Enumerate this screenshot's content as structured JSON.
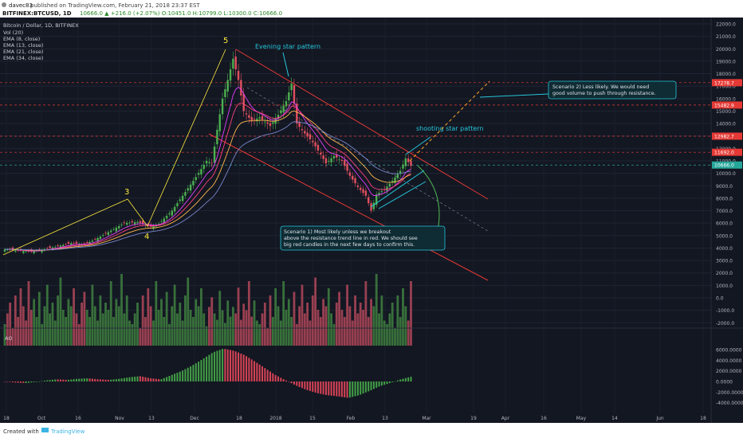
{
  "header": {
    "author": "davec83",
    "published": "published on TradingView.com, February 21, 2018 23:37 EST",
    "ticker": "BITFINEX:BTCUSD, 1D",
    "ohlc": "10666.0 ▲ +216.0 (+2.07%) O:10451.0 H:10799.0 L:10300.0 C:10666.0"
  },
  "footer": {
    "created_with": "Created with",
    "brand": "TradingView"
  },
  "chart_data": {
    "type": "candlestick",
    "title": "Bitcoin / Dollar, 1D, BITFINEX",
    "indicators": [
      "Vol (20)",
      "EMA (8, close)",
      "EMA (13, close)",
      "EMA (21, close)",
      "EMA (34, close)"
    ],
    "colors": {
      "background": "#131722",
      "up": "#4caf50",
      "down": "#e05060",
      "ema8": "#e040fb",
      "ema13": "#ff4081",
      "ema21": "#ffb74d",
      "ema34": "#7986cb",
      "trendline": "#e53935",
      "annotation": "#26c6da",
      "wave": "#ffeb3b"
    },
    "price_axis": [
      22000,
      21000,
      20000,
      19000,
      18000,
      17000,
      16000,
      15000,
      14000,
      13000,
      12000,
      11000,
      10000,
      9000,
      8000,
      7000,
      6000,
      5000,
      4000,
      3000,
      2000,
      1000,
      0,
      -1000,
      -2000
    ],
    "price_labels": [
      {
        "text": "17278.7",
        "color": "#e53935"
      },
      {
        "text": "15482.9",
        "color": "#e53935"
      },
      {
        "text": "12982.7",
        "color": "#e53935"
      },
      {
        "text": "11692.0",
        "color": "#e53935"
      },
      {
        "text": "10666.0",
        "color": "#26a69a"
      }
    ],
    "ao_axis": [
      "6000.0000",
      "4000.0000",
      "2000.0000",
      "0.0000",
      "-2000.0000",
      "-4000.0000"
    ],
    "x_labels": [
      "18",
      "Oct",
      "16",
      "Nov",
      "13",
      "Dec",
      "18",
      "2018",
      "15",
      "Feb",
      "13",
      "Mar",
      "19",
      "Apr",
      "16",
      "May",
      "14",
      "Jun",
      "18"
    ],
    "price_path": [
      [
        0,
        3900
      ],
      [
        10,
        3700
      ],
      [
        18,
        4050
      ],
      [
        25,
        4400
      ],
      [
        30,
        4300
      ],
      [
        35,
        4800
      ],
      [
        40,
        5400
      ],
      [
        45,
        6000
      ],
      [
        50,
        6100
      ],
      [
        55,
        5700
      ],
      [
        58,
        5950
      ],
      [
        63,
        7000
      ],
      [
        68,
        8500
      ],
      [
        72,
        9700
      ],
      [
        76,
        11000
      ],
      [
        78,
        10800
      ],
      [
        80,
        13500
      ],
      [
        82,
        16000
      ],
      [
        84,
        17500
      ],
      [
        86,
        19200
      ],
      [
        88,
        17500
      ],
      [
        90,
        15000
      ],
      [
        93,
        14200
      ],
      [
        96,
        14500
      ],
      [
        100,
        13800
      ],
      [
        103,
        14700
      ],
      [
        106,
        15800
      ],
      [
        108,
        17200
      ],
      [
        110,
        14000
      ],
      [
        113,
        13200
      ],
      [
        116,
        12500
      ],
      [
        119,
        11500
      ],
      [
        121,
        10800
      ],
      [
        124,
        11400
      ],
      [
        127,
        11000
      ],
      [
        130,
        9800
      ],
      [
        133,
        8900
      ],
      [
        136,
        8200
      ],
      [
        138,
        7000
      ],
      [
        140,
        8300
      ],
      [
        143,
        8700
      ],
      [
        146,
        9400
      ],
      [
        149,
        10200
      ],
      [
        151,
        11200
      ],
      [
        153,
        10600
      ]
    ],
    "ema_spreads": [
      0,
      -300,
      -650,
      -1100
    ],
    "volume": [
      30,
      45,
      60,
      25,
      70,
      40,
      80,
      55,
      35,
      90,
      50,
      65,
      40,
      75,
      30,
      55,
      85,
      45,
      60,
      35,
      70,
      95,
      50,
      40,
      65,
      55,
      80,
      45,
      30,
      60,
      75,
      50,
      40,
      85,
      55,
      35,
      70,
      45,
      60,
      50,
      90,
      40,
      65,
      55,
      100,
      45,
      70,
      35
    ],
    "ao": [
      0,
      -200,
      -300,
      -100,
      200,
      400,
      300,
      500,
      600,
      400,
      300,
      500,
      800,
      1000,
      600,
      400,
      1200,
      2000,
      3000,
      4200,
      5500,
      6200,
      5800,
      5000,
      3800,
      2500,
      1200,
      200,
      -800,
      -1600,
      -2200,
      -2600,
      -2800,
      -3100,
      -2600,
      -1800,
      -900,
      -300,
      400,
      900
    ],
    "annotations": {
      "wave3": "3",
      "wave4": "4",
      "wave5": "5",
      "evening_star": "Evening star pattern",
      "shooting_star": "shooting star pattern",
      "scenario1": [
        "Scenario 1) Most likely unless we breakout",
        "above the resistance trend line in red. We should see",
        "big red candles in the next few days to confirm this."
      ],
      "scenario2": [
        "Scenario 2) Less likely. We would need",
        "good volume to push through resistance."
      ]
    },
    "ao_label": "AO"
  }
}
